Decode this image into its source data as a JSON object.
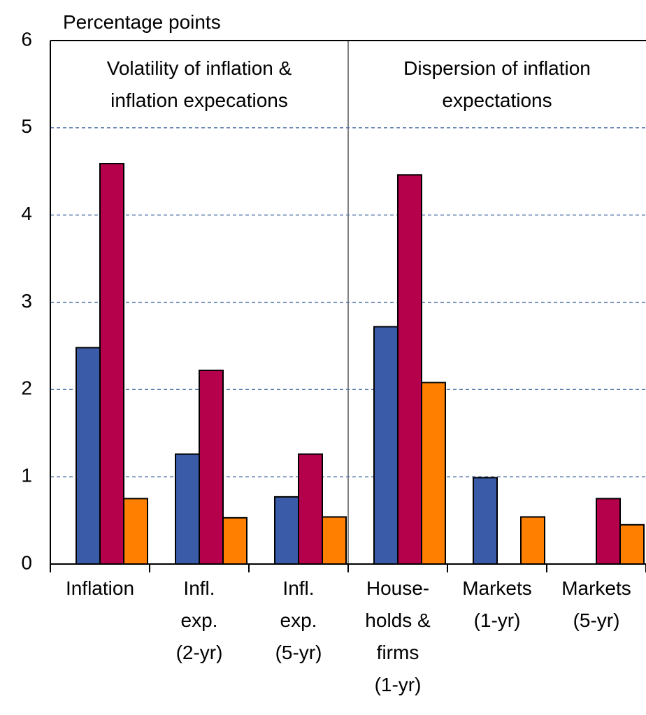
{
  "chart_data": {
    "type": "bar",
    "y_label": "Percentage points",
    "annotations": [
      "Volatility of inflation &\ninflation expecations",
      "Dispersion of inflation\nexpectations"
    ],
    "categories": [
      "Inflation",
      "Infl.\nexp.\n(2-yr)",
      "Infl.\nexp.\n(5-yr)",
      "House-\nholds &\nfirms\n(1-yr)",
      "Markets\n(1-yr)",
      "Markets\n(5-yr)"
    ],
    "series": [
      {
        "color": "#3a5ba8",
        "values": [
          2.48,
          1.26,
          0.77,
          2.72,
          0.99,
          null
        ]
      },
      {
        "color": "#b5004b",
        "values": [
          4.59,
          2.22,
          1.26,
          4.46,
          null,
          0.75
        ]
      },
      {
        "color": "#ff8000",
        "values": [
          0.75,
          0.53,
          0.54,
          2.08,
          0.54,
          0.45
        ]
      }
    ],
    "ylim": [
      0,
      6
    ],
    "yticks": [
      0,
      1,
      2,
      3,
      4,
      5,
      6
    ],
    "grid": true
  }
}
